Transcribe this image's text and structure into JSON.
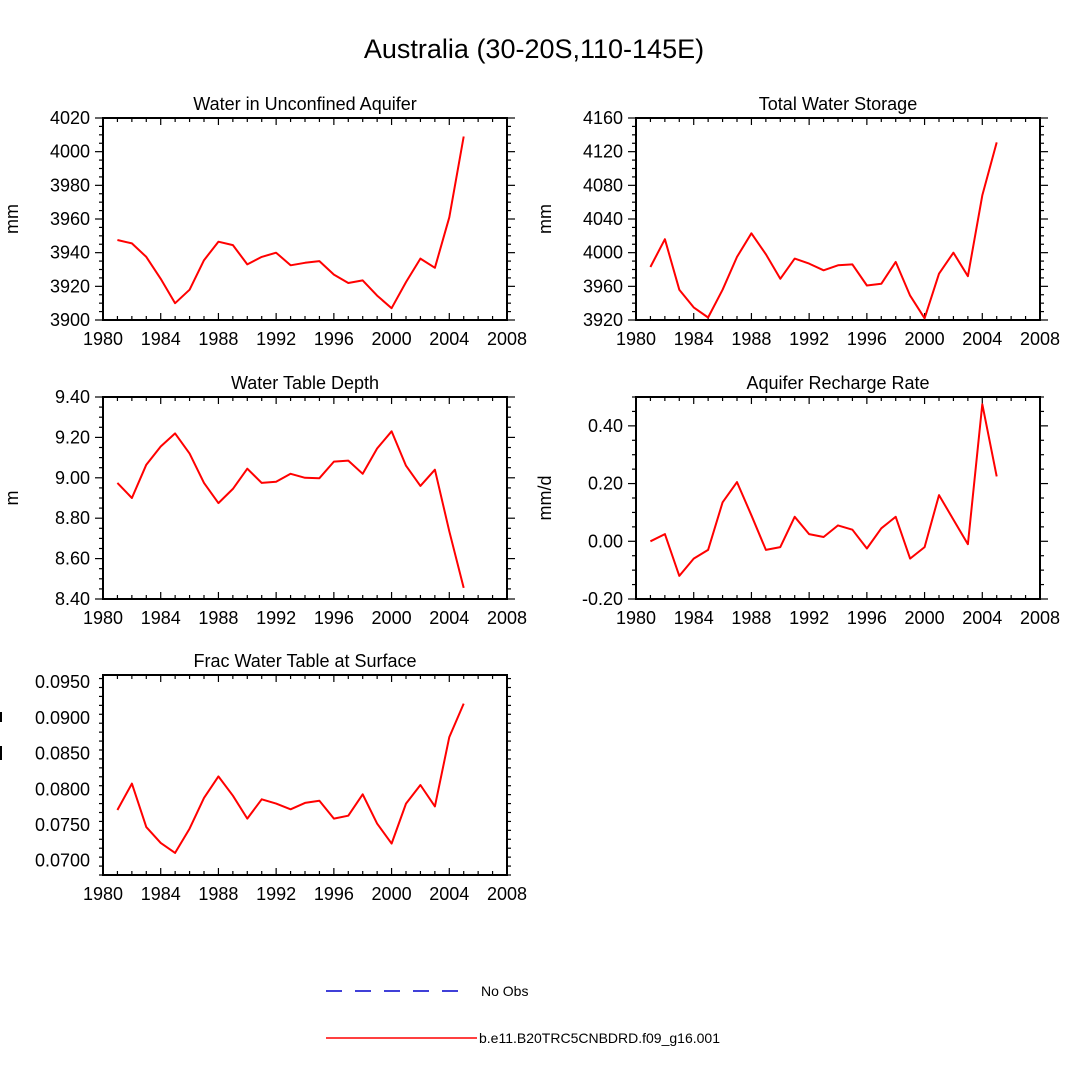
{
  "title": "Australia (30-20S,110-145E)",
  "colors": {
    "model_line": "#ff0000",
    "obs_line": "#0000cc",
    "axes": "#000000"
  },
  "legend": {
    "entries": [
      {
        "label": "No Obs",
        "style": "dashed",
        "color": "#0000cc"
      },
      {
        "label": "b.e11.B20TRC5CNBDRD.f09_g16.001",
        "style": "solid",
        "color": "#ff0000"
      }
    ]
  },
  "chart_data": [
    {
      "type": "line",
      "title": "Water in Unconfined Aquifer",
      "ylabel": "mm",
      "xlim": [
        1980,
        2008
      ],
      "ylim": [
        3900,
        4020
      ],
      "xticks": [
        1980,
        1984,
        1988,
        1992,
        1996,
        2000,
        2004,
        2008
      ],
      "yticks": [
        3900,
        3920,
        3940,
        3960,
        3980,
        4000,
        4020
      ],
      "ytick_labels": [
        "3900",
        "3920",
        "3940",
        "3960",
        "3980",
        "4000",
        "4020"
      ],
      "x": [
        1981,
        1982,
        1983,
        1984,
        1985,
        1986,
        1987,
        1988,
        1989,
        1990,
        1991,
        1992,
        1993,
        1994,
        1995,
        1996,
        1997,
        1998,
        1999,
        2000,
        2001,
        2002,
        2003,
        2004,
        2005
      ],
      "series": [
        {
          "name": "b.e11.B20TRC5CNBDRD.f09_g16.001",
          "values": [
            3947.5,
            3945.5,
            3937.5,
            3924.5,
            3910,
            3918,
            3935.5,
            3946.5,
            3944.5,
            3933,
            3937.5,
            3940,
            3932.5,
            3934,
            3935,
            3927,
            3922,
            3923.5,
            3914.5,
            3907,
            3922.5,
            3936.5,
            3931,
            3961,
            4009
          ]
        }
      ]
    },
    {
      "type": "line",
      "title": "Total Water Storage",
      "ylabel": "mm",
      "xlim": [
        1980,
        2008
      ],
      "ylim": [
        3920,
        4160
      ],
      "xticks": [
        1980,
        1984,
        1988,
        1992,
        1996,
        2000,
        2004,
        2008
      ],
      "yticks": [
        3920,
        3960,
        4000,
        4040,
        4080,
        4120,
        4160
      ],
      "ytick_labels": [
        "3920",
        "3960",
        "4000",
        "4040",
        "4080",
        "4120",
        "4160"
      ],
      "x": [
        1981,
        1982,
        1983,
        1984,
        1985,
        1986,
        1987,
        1988,
        1989,
        1990,
        1991,
        1992,
        1993,
        1994,
        1995,
        1996,
        1997,
        1998,
        1999,
        2000,
        2001,
        2002,
        2003,
        2004,
        2005
      ],
      "series": [
        {
          "name": "b.e11.B20TRC5CNBDRD.f09_g16.001",
          "values": [
            3983,
            4016,
            3956,
            3935,
            3923,
            3956,
            3995,
            4023,
            3998,
            3969,
            3993,
            3987,
            3979,
            3985,
            3986,
            3961,
            3963,
            3989,
            3949,
            3922,
            3975,
            4000,
            3972,
            4068,
            4131
          ]
        }
      ]
    },
    {
      "type": "line",
      "title": "Water Table Depth",
      "ylabel": "m",
      "xlim": [
        1980,
        2008
      ],
      "ylim": [
        8.4,
        9.4
      ],
      "xticks": [
        1980,
        1984,
        1988,
        1992,
        1996,
        2000,
        2004,
        2008
      ],
      "yticks": [
        8.4,
        8.6,
        8.8,
        9.0,
        9.2,
        9.4
      ],
      "ytick_labels": [
        "8.40",
        "8.60",
        "8.80",
        "9.00",
        "9.20",
        "9.40"
      ],
      "x": [
        1981,
        1982,
        1983,
        1984,
        1985,
        1986,
        1987,
        1988,
        1989,
        1990,
        1991,
        1992,
        1993,
        1994,
        1995,
        1996,
        1997,
        1998,
        1999,
        2000,
        2001,
        2002,
        2003,
        2004,
        2005
      ],
      "series": [
        {
          "name": "b.e11.B20TRC5CNBDRD.f09_g16.001",
          "values": [
            8.975,
            8.9,
            9.065,
            9.155,
            9.22,
            9.12,
            8.975,
            8.875,
            8.945,
            9.045,
            8.975,
            8.98,
            9.02,
            9.0,
            8.998,
            9.08,
            9.085,
            9.02,
            9.145,
            9.23,
            9.06,
            8.96,
            9.04,
            8.735,
            8.455
          ]
        }
      ]
    },
    {
      "type": "line",
      "title": "Aquifer Recharge Rate",
      "ylabel": "mm/d",
      "xlim": [
        1980,
        2008
      ],
      "ylim": [
        -0.2,
        0.5
      ],
      "xticks": [
        1980,
        1984,
        1988,
        1992,
        1996,
        2000,
        2004,
        2008
      ],
      "yticks": [
        -0.2,
        0.0,
        0.2,
        0.4
      ],
      "ytick_labels": [
        "-0.20",
        "0.00",
        "0.20",
        "0.40"
      ],
      "x": [
        1981,
        1982,
        1983,
        1984,
        1985,
        1986,
        1987,
        1988,
        1989,
        1990,
        1991,
        1992,
        1993,
        1994,
        1995,
        1996,
        1997,
        1998,
        1999,
        2000,
        2001,
        2002,
        2003,
        2004,
        2005
      ],
      "series": [
        {
          "name": "b.e11.B20TRC5CNBDRD.f09_g16.001",
          "values": [
            0.0,
            0.025,
            -0.12,
            -0.06,
            -0.03,
            0.135,
            0.205,
            0.09,
            -0.03,
            -0.02,
            0.085,
            0.025,
            0.015,
            0.055,
            0.04,
            -0.025,
            0.045,
            0.085,
            -0.06,
            -0.02,
            0.16,
            0.075,
            -0.01,
            0.475,
            0.225
          ]
        }
      ]
    },
    {
      "type": "line",
      "title": "Frac Water Table at Surface",
      "ylabel": "",
      "xlim": [
        1980,
        2008
      ],
      "ylim": [
        0.068,
        0.096
      ],
      "xticks": [
        1980,
        1984,
        1988,
        1992,
        1996,
        2000,
        2004,
        2008
      ],
      "yticks": [
        0.07,
        0.075,
        0.08,
        0.085,
        0.09,
        0.095
      ],
      "ytick_labels": [
        "0.0700",
        "0.0750",
        "0.0800",
        "0.0850",
        "0.0900",
        "0.0950"
      ],
      "x": [
        1981,
        1982,
        1983,
        1984,
        1985,
        1986,
        1987,
        1988,
        1989,
        1990,
        1991,
        1992,
        1993,
        1994,
        1995,
        1996,
        1997,
        1998,
        1999,
        2000,
        2001,
        2002,
        2003,
        2004,
        2005
      ],
      "series": [
        {
          "name": "b.e11.B20TRC5CNBDRD.f09_g16.001",
          "values": [
            0.0771,
            0.0808,
            0.0747,
            0.0725,
            0.0711,
            0.0745,
            0.0788,
            0.0818,
            0.0791,
            0.0759,
            0.0786,
            0.078,
            0.0772,
            0.0781,
            0.0784,
            0.0759,
            0.0763,
            0.0793,
            0.0752,
            0.0724,
            0.078,
            0.0806,
            0.0776,
            0.0873,
            0.092
          ]
        }
      ]
    }
  ]
}
